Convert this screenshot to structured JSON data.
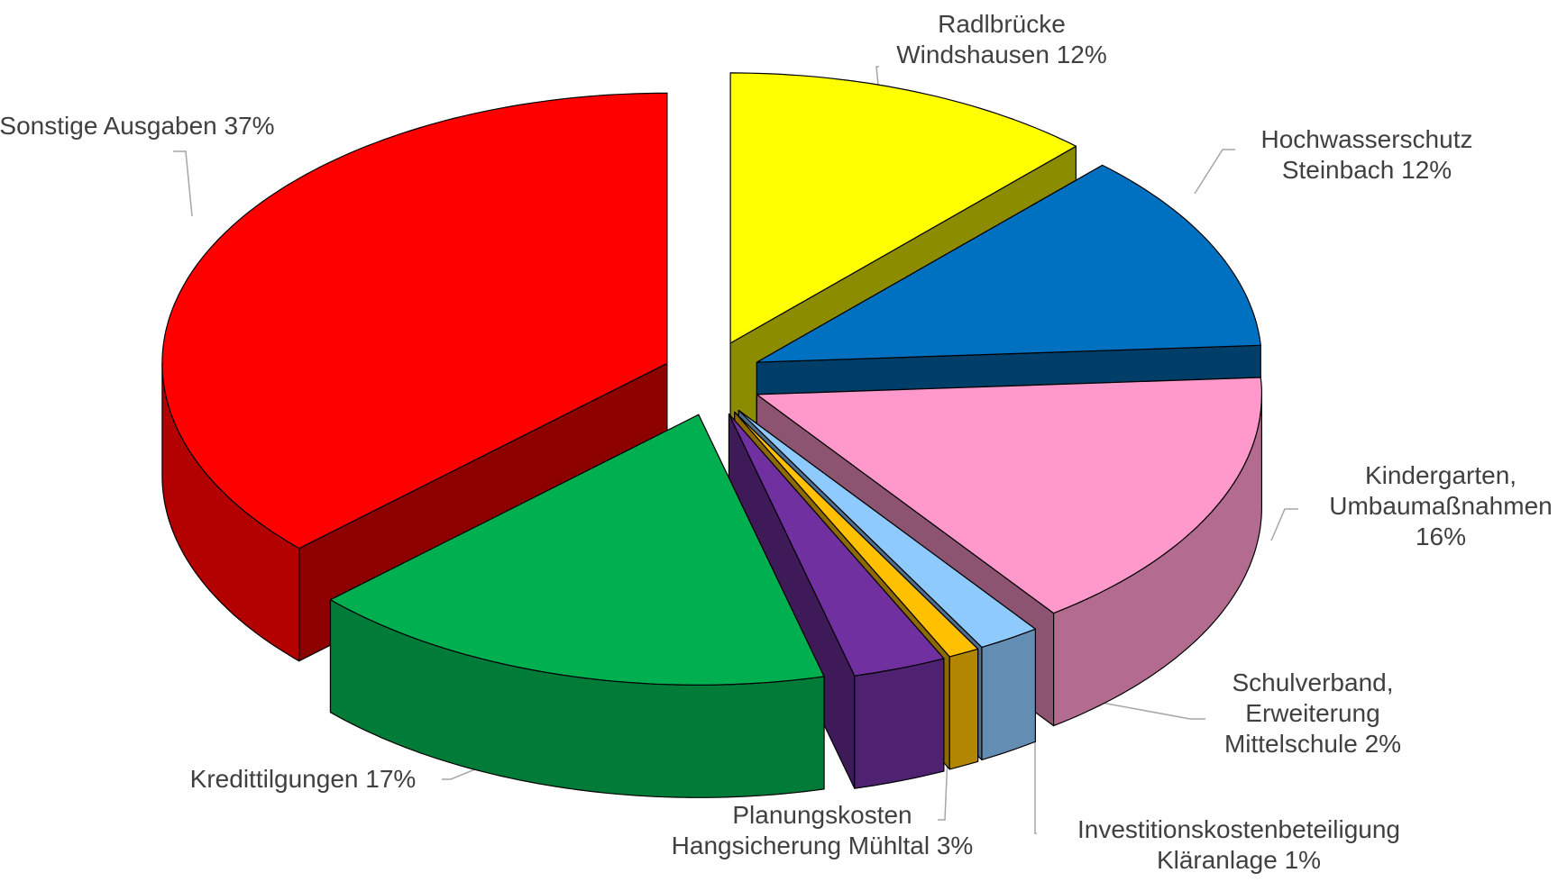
{
  "chart_data": {
    "type": "pie3d",
    "categories": [
      "Radlbrücke Windshausen",
      "Hochwasserschutz Steinbach",
      "Kindergarten, Umbaumaßnahmen",
      "Schulverband, Erweiterung Mittelschule",
      "Investitionskostenbeteiligung Kläranlage",
      "Planungskosten Hangsicherung Mühltal",
      "Kredittilgungen",
      "Sonstige Ausgaben"
    ],
    "values": [
      12,
      12,
      16,
      2,
      1,
      3,
      17,
      37
    ],
    "value_labels": [
      "12%",
      "12%",
      "16%",
      "2%",
      "1%",
      "3%",
      "17%",
      "37%"
    ],
    "colors": [
      "#ffff00",
      "#0070c0",
      "#ff99cc",
      "#8fcaff",
      "#ffc000",
      "#7030a0",
      "#00b050",
      "#ff0000"
    ]
  }
}
